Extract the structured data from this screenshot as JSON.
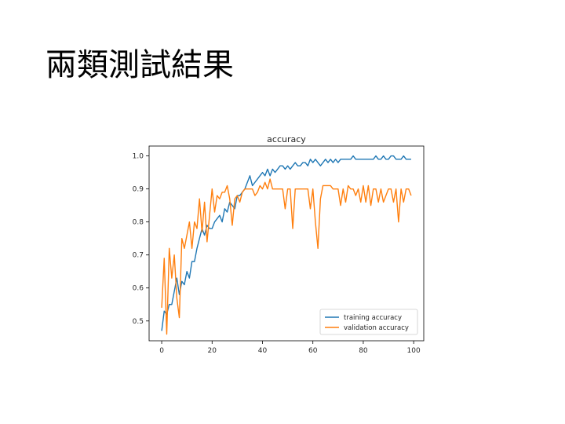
{
  "slide": {
    "title": "兩類測試結果"
  },
  "chart_data": {
    "type": "line",
    "title": "accuracy",
    "xlabel": "",
    "ylabel": "",
    "xlim": [
      -5,
      104
    ],
    "ylim": [
      0.44,
      1.03
    ],
    "xticks": [
      0,
      20,
      40,
      60,
      80,
      100
    ],
    "yticks": [
      0.5,
      0.6,
      0.7,
      0.8,
      0.9,
      1.0
    ],
    "ytick_labels": [
      "0.5",
      "0.6",
      "0.7",
      "0.8",
      "0.9",
      "1.0"
    ],
    "xtick_labels": [
      "0",
      "20",
      "40",
      "60",
      "80",
      "100"
    ],
    "grid": false,
    "legend_position": "lower-right",
    "series": [
      {
        "name": "training accuracy",
        "color": "#1f77b4",
        "x": [
          0,
          1,
          2,
          3,
          4,
          5,
          6,
          7,
          8,
          9,
          10,
          11,
          12,
          13,
          14,
          15,
          16,
          17,
          18,
          19,
          20,
          21,
          22,
          23,
          24,
          25,
          26,
          27,
          28,
          29,
          30,
          31,
          32,
          33,
          34,
          35,
          36,
          37,
          38,
          39,
          40,
          41,
          42,
          43,
          44,
          45,
          46,
          47,
          48,
          49,
          50,
          51,
          52,
          53,
          54,
          55,
          56,
          57,
          58,
          59,
          60,
          61,
          62,
          63,
          64,
          65,
          66,
          67,
          68,
          69,
          70,
          71,
          72,
          73,
          74,
          75,
          76,
          77,
          78,
          79,
          80,
          81,
          82,
          83,
          84,
          85,
          86,
          87,
          88,
          89,
          90,
          91,
          92,
          93,
          94,
          95,
          96,
          97,
          98,
          99
        ],
        "values": [
          0.47,
          0.53,
          0.52,
          0.55,
          0.55,
          0.59,
          0.63,
          0.58,
          0.62,
          0.61,
          0.65,
          0.63,
          0.68,
          0.68,
          0.72,
          0.75,
          0.78,
          0.76,
          0.79,
          0.78,
          0.78,
          0.8,
          0.81,
          0.82,
          0.8,
          0.84,
          0.83,
          0.86,
          0.85,
          0.84,
          0.88,
          0.88,
          0.89,
          0.9,
          0.92,
          0.94,
          0.91,
          0.92,
          0.93,
          0.94,
          0.95,
          0.94,
          0.96,
          0.94,
          0.96,
          0.95,
          0.96,
          0.97,
          0.97,
          0.96,
          0.97,
          0.96,
          0.97,
          0.98,
          0.97,
          0.97,
          0.98,
          0.98,
          0.97,
          0.99,
          0.98,
          0.99,
          0.98,
          0.97,
          0.98,
          0.99,
          0.98,
          0.99,
          0.98,
          0.99,
          0.98,
          0.99,
          0.99,
          0.99,
          0.99,
          0.99,
          1.0,
          0.99,
          0.99,
          0.99,
          0.99,
          0.99,
          0.99,
          0.99,
          0.99,
          1.0,
          0.99,
          0.99,
          1.0,
          0.99,
          0.99,
          1.0,
          1.0,
          0.99,
          0.99,
          0.99,
          1.0,
          0.99,
          0.99,
          0.99
        ]
      },
      {
        "name": "validation accuracy",
        "color": "#ff7f0e",
        "x": [
          0,
          1,
          2,
          3,
          4,
          5,
          6,
          7,
          8,
          9,
          10,
          11,
          12,
          13,
          14,
          15,
          16,
          17,
          18,
          19,
          20,
          21,
          22,
          23,
          24,
          25,
          26,
          27,
          28,
          29,
          30,
          31,
          32,
          33,
          34,
          35,
          36,
          37,
          38,
          39,
          40,
          41,
          42,
          43,
          44,
          45,
          46,
          47,
          48,
          49,
          50,
          51,
          52,
          53,
          54,
          55,
          56,
          57,
          58,
          59,
          60,
          61,
          62,
          63,
          64,
          65,
          66,
          67,
          68,
          69,
          70,
          71,
          72,
          73,
          74,
          75,
          76,
          77,
          78,
          79,
          80,
          81,
          82,
          83,
          84,
          85,
          86,
          87,
          88,
          89,
          90,
          91,
          92,
          93,
          94,
          95,
          96,
          97,
          98,
          99
        ],
        "values": [
          0.54,
          0.69,
          0.46,
          0.72,
          0.63,
          0.7,
          0.57,
          0.51,
          0.75,
          0.72,
          0.76,
          0.8,
          0.72,
          0.8,
          0.78,
          0.87,
          0.77,
          0.86,
          0.74,
          0.82,
          0.9,
          0.83,
          0.88,
          0.87,
          0.89,
          0.89,
          0.91,
          0.87,
          0.79,
          0.87,
          0.88,
          0.86,
          0.89,
          0.9,
          0.9,
          0.9,
          0.9,
          0.88,
          0.89,
          0.91,
          0.9,
          0.92,
          0.9,
          0.93,
          0.9,
          0.9,
          0.9,
          0.9,
          0.9,
          0.84,
          0.9,
          0.9,
          0.78,
          0.9,
          0.9,
          0.9,
          0.9,
          0.9,
          0.9,
          0.84,
          0.9,
          0.8,
          0.72,
          0.87,
          0.91,
          0.91,
          0.91,
          0.91,
          0.9,
          0.9,
          0.9,
          0.85,
          0.9,
          0.86,
          0.91,
          0.9,
          0.9,
          0.88,
          0.9,
          0.86,
          0.91,
          0.86,
          0.91,
          0.85,
          0.9,
          0.9,
          0.86,
          0.9,
          0.86,
          0.88,
          0.9,
          0.9,
          0.86,
          0.9,
          0.8,
          0.9,
          0.86,
          0.9,
          0.9,
          0.88
        ]
      }
    ]
  }
}
